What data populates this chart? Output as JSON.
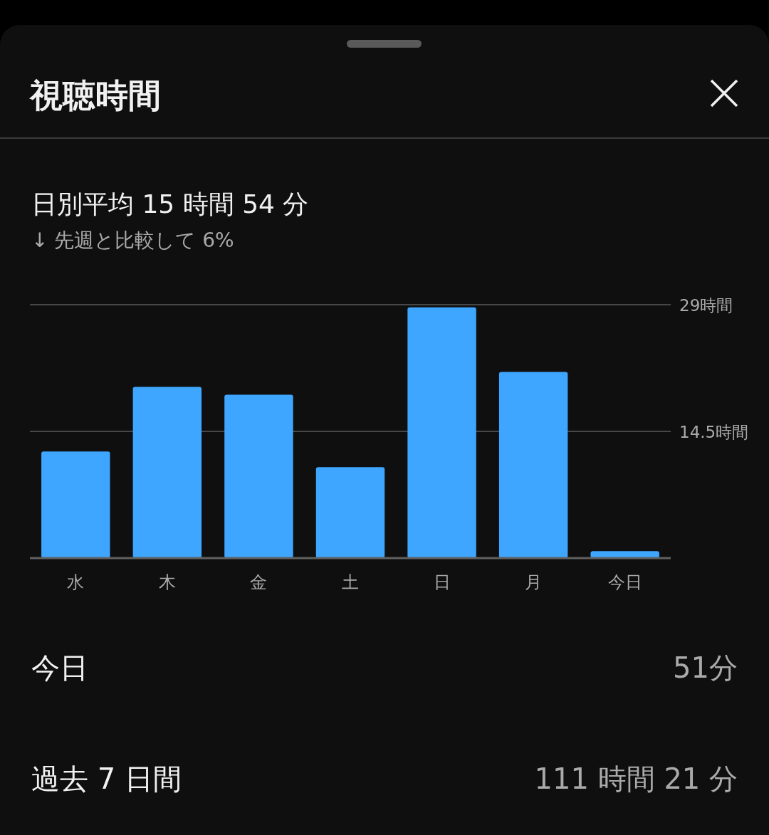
{
  "chart_data": {
    "type": "bar",
    "title": "視聴時間",
    "subtitle": "日別平均 15 時間 54 分",
    "annotations": [
      "↓ 先週と比較して 6%",
      "今日",
      "51分",
      "過去 7 日間",
      "111 時間 21 分"
    ],
    "categories": [
      "水",
      "木",
      "金",
      "土",
      "日",
      "月",
      "今日"
    ],
    "values": [
      12.2,
      19.6,
      18.7,
      10.4,
      28.7,
      21.3,
      0.8
    ],
    "color": "#3ea6ff",
    "ylim": [
      0,
      29
    ],
    "yticks": [
      {
        "value": 14.5,
        "label": "14.5時間"
      },
      {
        "value": 29,
        "label": "29時間"
      }
    ],
    "grid": "y"
  }
}
